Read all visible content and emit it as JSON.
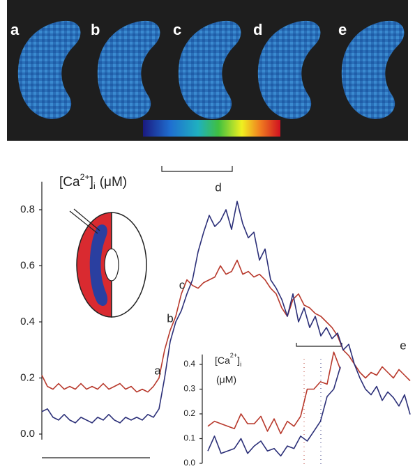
{
  "image_panel": {
    "labels": [
      "a",
      "b",
      "c",
      "d",
      "e"
    ]
  },
  "chart_data": [
    {
      "type": "line",
      "y_label_parts": [
        "[Ca",
        "2+",
        "]",
        "i",
        "(μM)"
      ],
      "ylim": [
        -0.02,
        0.9
      ],
      "yticks": [
        {
          "value": 0,
          "label": "0.0"
        },
        0.2,
        0.4,
        0.6,
        0.8
      ],
      "annotations": [
        "a",
        "b",
        "c",
        "d",
        "e"
      ],
      "series": [
        {
          "color": "#b8392c",
          "values": [
            0.21,
            0.17,
            0.16,
            0.18,
            0.16,
            0.17,
            0.16,
            0.18,
            0.16,
            0.17,
            0.16,
            0.18,
            0.16,
            0.17,
            0.18,
            0.16,
            0.17,
            0.15,
            0.16,
            0.15,
            0.17,
            0.2,
            0.3,
            0.37,
            0.42,
            0.5,
            0.55,
            0.53,
            0.52,
            0.54,
            0.55,
            0.56,
            0.6,
            0.57,
            0.58,
            0.62,
            0.57,
            0.58,
            0.56,
            0.57,
            0.55,
            0.52,
            0.5,
            0.45,
            0.42,
            0.48,
            0.5,
            0.46,
            0.45,
            0.43,
            0.42,
            0.4,
            0.38,
            0.35,
            0.3,
            0.28,
            0.25,
            0.22,
            0.2,
            0.22,
            0.21,
            0.24,
            0.22,
            0.2,
            0.23,
            0.21,
            0.19
          ]
        },
        {
          "color": "#2b2f78",
          "values": [
            0.08,
            0.09,
            0.06,
            0.05,
            0.07,
            0.05,
            0.04,
            0.06,
            0.05,
            0.04,
            0.06,
            0.05,
            0.07,
            0.05,
            0.04,
            0.06,
            0.05,
            0.06,
            0.05,
            0.07,
            0.06,
            0.09,
            0.2,
            0.33,
            0.4,
            0.44,
            0.5,
            0.55,
            0.65,
            0.72,
            0.78,
            0.74,
            0.76,
            0.8,
            0.73,
            0.83,
            0.75,
            0.7,
            0.72,
            0.62,
            0.66,
            0.55,
            0.52,
            0.48,
            0.42,
            0.5,
            0.4,
            0.45,
            0.38,
            0.42,
            0.35,
            0.38,
            0.34,
            0.36,
            0.3,
            0.32,
            0.25,
            0.2,
            0.16,
            0.14,
            0.17,
            0.12,
            0.15,
            0.13,
            0.1,
            0.14,
            0.07
          ]
        }
      ]
    },
    {
      "type": "line",
      "y_label_parts": [
        "[Ca",
        "2+",
        "]",
        "i",
        "(μM)"
      ],
      "ylim": [
        0,
        0.44
      ],
      "yticks": [
        {
          "value": 0,
          "label": "0.0"
        },
        0.1,
        0.2,
        0.3,
        0.4
      ],
      "series": [
        {
          "color": "#b8392c",
          "values": [
            0.15,
            0.17,
            0.16,
            0.15,
            0.14,
            0.2,
            0.16,
            0.16,
            0.19,
            0.13,
            0.18,
            0.12,
            0.17,
            0.15,
            0.19,
            0.3,
            0.3,
            0.33,
            0.32,
            0.45,
            0.38
          ]
        },
        {
          "color": "#2b2f78",
          "values": [
            0.05,
            0.11,
            0.04,
            0.05,
            0.06,
            0.1,
            0.04,
            0.07,
            0.09,
            0.05,
            0.06,
            0.03,
            0.07,
            0.06,
            0.11,
            0.09,
            0.13,
            0.17,
            0.27,
            0.3,
            0.39
          ]
        }
      ]
    }
  ]
}
